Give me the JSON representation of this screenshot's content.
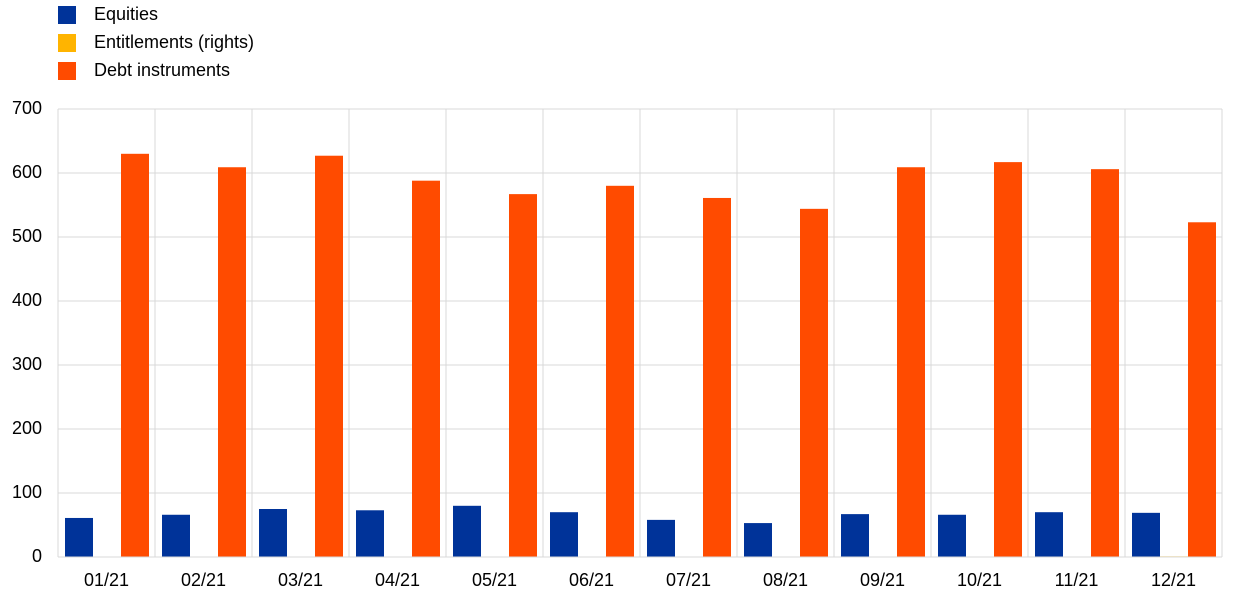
{
  "chart_data": {
    "type": "bar",
    "categories": [
      "01/21",
      "02/21",
      "03/21",
      "04/21",
      "05/21",
      "06/21",
      "07/21",
      "08/21",
      "09/21",
      "10/21",
      "11/21",
      "12/21"
    ],
    "series": [
      {
        "name": "Equities",
        "color": "#003399",
        "values": [
          61,
          66,
          75,
          73,
          80,
          70,
          58,
          53,
          67,
          66,
          70,
          69
        ]
      },
      {
        "name": "Entitlements (rights)",
        "color": "#ffb400",
        "values": [
          0,
          0,
          0,
          0,
          0,
          0,
          0,
          0,
          0,
          0,
          0,
          1
        ]
      },
      {
        "name": "Debt instruments",
        "color": "#ff4b00",
        "values": [
          630,
          609,
          627,
          588,
          567,
          580,
          561,
          544,
          609,
          617,
          606,
          523
        ]
      }
    ],
    "ylim": [
      0,
      700
    ],
    "yticks": [
      0,
      100,
      200,
      300,
      400,
      500,
      600,
      700
    ],
    "grid": true,
    "legend": "top-left"
  }
}
